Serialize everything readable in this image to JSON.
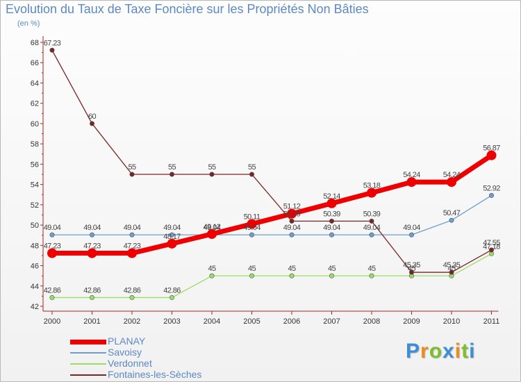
{
  "header": {
    "title": "Evolution du Taux de Taxe Foncière sur les Propriétés Non Bâties",
    "subtitle": "(en %)"
  },
  "colors": {
    "title": "#5c88c4",
    "axis": "#aa2222",
    "label": "#444444"
  },
  "logo": {
    "text": "Proxiti",
    "letters": [
      {
        "ch": "P",
        "color": "#3a8fd8"
      },
      {
        "ch": "r",
        "color": "#ef8a1f"
      },
      {
        "ch": "o",
        "color": "#7cbf2a"
      },
      {
        "ch": "x",
        "color": "#3a8fd8"
      },
      {
        "ch": "i",
        "color": "#ef8a1f"
      },
      {
        "ch": "t",
        "color": "#7cbf2a"
      },
      {
        "ch": "i",
        "color": "#3a8fd8"
      }
    ]
  },
  "chart_data": {
    "type": "line",
    "title": "Evolution du Taux de Taxe Foncière sur les Propriétés Non Bâties",
    "ylabel": "(en %)",
    "xlabel": "",
    "x": [
      "2000",
      "2001",
      "2002",
      "2003",
      "2004",
      "2005",
      "2006",
      "2007",
      "2008",
      "2009",
      "2010",
      "2011"
    ],
    "ylim": [
      42,
      68
    ],
    "yticks": [
      42,
      44,
      46,
      48,
      50,
      52,
      54,
      56,
      58,
      60,
      62,
      64,
      66,
      68
    ],
    "grid": false,
    "legend_position": "bottom-left",
    "series": [
      {
        "name": "PLANAY",
        "color": "#ee0000",
        "stroke": 7,
        "marker": 7,
        "values": [
          47.23,
          47.23,
          47.23,
          48.17,
          49.12,
          50.11,
          51.12,
          52.14,
          53.18,
          54.24,
          54.24,
          56.87
        ],
        "labels": [
          "47.23",
          "47.23",
          "47.23",
          "48.17",
          "49.12",
          "50.11",
          "51.12",
          "52.14",
          "53.18",
          "54.24",
          "54.24",
          "56.87"
        ]
      },
      {
        "name": "Savoisy",
        "color": "#6a9fd0",
        "stroke": 1.3,
        "marker": 3.2,
        "values": [
          49.04,
          49.04,
          49.04,
          49.04,
          49.04,
          49.04,
          49.04,
          49.04,
          49.04,
          49.04,
          50.47,
          52.92
        ],
        "labels": [
          "49.04",
          "49.04",
          "49.04",
          "49.04",
          "49.04",
          "49.04",
          "49.04",
          "49.04",
          "49.04",
          "49.04",
          "50.47",
          "52.92"
        ]
      },
      {
        "name": "Verdonnet",
        "color": "#99dd66",
        "stroke": 1.3,
        "marker": 3.2,
        "values": [
          42.86,
          42.86,
          42.86,
          42.86,
          45,
          45,
          45,
          45,
          45,
          45,
          45,
          47.18
        ],
        "labels": [
          "42.86",
          "42.86",
          "42.86",
          "42.86",
          "45",
          "45",
          "45",
          "45",
          "45",
          "45",
          "45",
          "47.18"
        ]
      },
      {
        "name": "Fontaines-les-Sèches",
        "color": "#7a2424",
        "stroke": 1.3,
        "marker": 3.2,
        "values": [
          67.23,
          60,
          55,
          55,
          55,
          55,
          50.39,
          50.39,
          50.39,
          45.35,
          45.35,
          47.55
        ],
        "labels": [
          "67.23",
          "60",
          "55",
          "55",
          "55",
          "55",
          "50.39",
          "50.39",
          "50.39",
          "45.35",
          "45.35",
          "47.55"
        ]
      }
    ]
  }
}
